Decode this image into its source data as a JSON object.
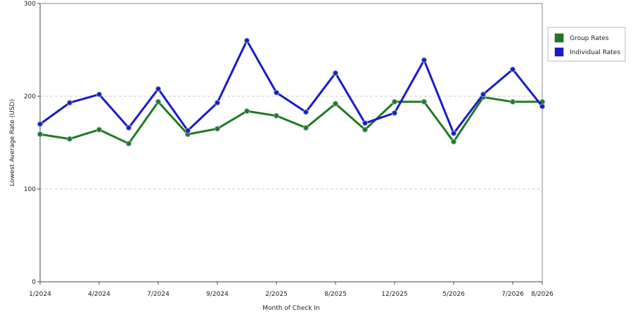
{
  "chart_data": {
    "type": "line",
    "y_label": "Lowest Average Rate (USD)",
    "x_label": "Month of Check In",
    "categories": [
      "1/2024",
      null,
      "4/2024",
      null,
      "7/2024",
      null,
      "9/2024",
      null,
      "2/2025",
      null,
      "8/2025",
      null,
      "12/2025",
      null,
      "5/2026",
      null,
      "7/2026",
      "8/2026"
    ],
    "series": [
      {
        "name": "Group Rates",
        "color": "#1e7b1e",
        "values": [
          159,
          154,
          164,
          149,
          194,
          159,
          165,
          184,
          179,
          166,
          192,
          164,
          194,
          194,
          151,
          199,
          194,
          194
        ]
      },
      {
        "name": "Individual Rates",
        "color": "#1a1acc",
        "values": [
          170,
          193,
          202,
          166,
          208,
          163,
          193,
          260,
          204,
          183,
          225,
          171,
          182,
          239,
          160,
          202,
          229,
          189
        ]
      }
    ],
    "ylim": [
      0,
      300
    ],
    "yticks": [
      0,
      100,
      200,
      300
    ],
    "grid": true,
    "legend": "right"
  }
}
